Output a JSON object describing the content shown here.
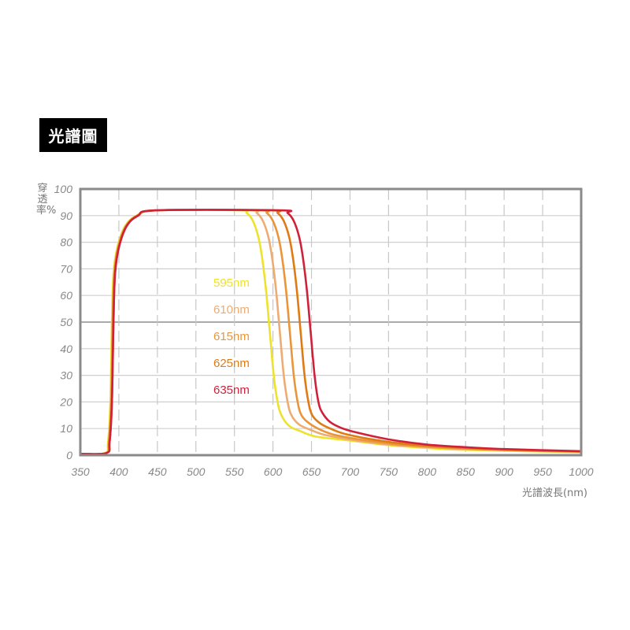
{
  "title": "光譜圖",
  "chart_data": {
    "type": "line",
    "title": "光譜圖",
    "xlabel": "光譜波長(nm)",
    "ylabel": "穿透率%",
    "xlim": [
      350,
      1000
    ],
    "ylim": [
      0,
      100
    ],
    "xticks": [
      350,
      400,
      450,
      500,
      550,
      600,
      650,
      700,
      750,
      800,
      850,
      900,
      950,
      1000
    ],
    "yticks": [
      0,
      10,
      20,
      30,
      40,
      50,
      60,
      70,
      80,
      90,
      100
    ],
    "grid": true,
    "legend_position": "center-left",
    "series": [
      {
        "name": "595nm",
        "color": "#ede22c",
        "points": [
          [
            350,
            0.5
          ],
          [
            382,
            0.8
          ],
          [
            386,
            5
          ],
          [
            389,
            20
          ],
          [
            391,
            50
          ],
          [
            393,
            68
          ],
          [
            398,
            78
          ],
          [
            408,
            86
          ],
          [
            423,
            90
          ],
          [
            448,
            92
          ],
          [
            556,
            92
          ],
          [
            566,
            91
          ],
          [
            574,
            88
          ],
          [
            581,
            82
          ],
          [
            586,
            74
          ],
          [
            591,
            62
          ],
          [
            596,
            46
          ],
          [
            601,
            30
          ],
          [
            606,
            20
          ],
          [
            611,
            15
          ],
          [
            621,
            11
          ],
          [
            636,
            9
          ],
          [
            656,
            7
          ],
          [
            700,
            5.5
          ],
          [
            750,
            3.8
          ],
          [
            800,
            2.7
          ],
          [
            850,
            2
          ],
          [
            1000,
            1.1
          ]
        ]
      },
      {
        "name": "610nm",
        "color": "#eeab72",
        "points": [
          [
            350,
            0.5
          ],
          [
            383,
            0.8
          ],
          [
            387,
            5
          ],
          [
            390,
            20
          ],
          [
            392,
            50
          ],
          [
            394,
            68
          ],
          [
            399,
            78
          ],
          [
            409,
            86
          ],
          [
            424,
            90
          ],
          [
            449,
            92
          ],
          [
            569,
            92
          ],
          [
            579,
            91
          ],
          [
            587,
            88
          ],
          [
            594,
            82
          ],
          [
            599,
            74
          ],
          [
            604,
            62
          ],
          [
            609,
            46
          ],
          [
            614,
            30
          ],
          [
            619,
            20
          ],
          [
            624,
            15
          ],
          [
            634,
            11.5
          ],
          [
            649,
            9.5
          ],
          [
            669,
            7.5
          ],
          [
            709,
            5.5
          ],
          [
            759,
            3.8
          ],
          [
            859,
            2.2
          ],
          [
            1000,
            1.2
          ]
        ]
      },
      {
        "name": "615nm",
        "color": "#e9953a",
        "points": [
          [
            350,
            0.5
          ],
          [
            383,
            0.8
          ],
          [
            387,
            5
          ],
          [
            390,
            20
          ],
          [
            392,
            50
          ],
          [
            394,
            68
          ],
          [
            399,
            78
          ],
          [
            409,
            86
          ],
          [
            424,
            90
          ],
          [
            449,
            92
          ],
          [
            582,
            92
          ],
          [
            592,
            91
          ],
          [
            600,
            88
          ],
          [
            607,
            82
          ],
          [
            612,
            74
          ],
          [
            617,
            62
          ],
          [
            622,
            46
          ],
          [
            627,
            30
          ],
          [
            632,
            20
          ],
          [
            637,
            15
          ],
          [
            647,
            12
          ],
          [
            662,
            9.5
          ],
          [
            682,
            7.5
          ],
          [
            722,
            5.5
          ],
          [
            772,
            3.8
          ],
          [
            872,
            2.2
          ],
          [
            1000,
            1.3
          ]
        ]
      },
      {
        "name": "625nm",
        "color": "#df7b12",
        "points": [
          [
            350,
            0.5
          ],
          [
            384,
            0.8
          ],
          [
            388,
            5
          ],
          [
            391,
            20
          ],
          [
            393,
            50
          ],
          [
            395,
            68
          ],
          [
            400,
            78
          ],
          [
            410,
            86
          ],
          [
            425,
            90
          ],
          [
            450,
            92
          ],
          [
            596,
            92
          ],
          [
            606,
            91
          ],
          [
            614,
            88
          ],
          [
            621,
            82
          ],
          [
            626,
            74
          ],
          [
            631,
            62
          ],
          [
            636,
            46
          ],
          [
            641,
            30
          ],
          [
            646,
            20
          ],
          [
            651,
            15
          ],
          [
            661,
            12
          ],
          [
            676,
            9.8
          ],
          [
            696,
            7.8
          ],
          [
            736,
            5.6
          ],
          [
            786,
            3.9
          ],
          [
            886,
            2.3
          ],
          [
            1000,
            1.4
          ]
        ]
      },
      {
        "name": "635nm",
        "color": "#d0213a",
        "points": [
          [
            350,
            0.5
          ],
          [
            384,
            0.8
          ],
          [
            388,
            5
          ],
          [
            391,
            20
          ],
          [
            393,
            50
          ],
          [
            395,
            68
          ],
          [
            400,
            78
          ],
          [
            410,
            86
          ],
          [
            425,
            90
          ],
          [
            450,
            92
          ],
          [
            609,
            92
          ],
          [
            619,
            91
          ],
          [
            627,
            88
          ],
          [
            634,
            82
          ],
          [
            639,
            74
          ],
          [
            644,
            62
          ],
          [
            649,
            46
          ],
          [
            654,
            30
          ],
          [
            659,
            20
          ],
          [
            664,
            16
          ],
          [
            674,
            12.5
          ],
          [
            689,
            10.2
          ],
          [
            709,
            8.5
          ],
          [
            749,
            6
          ],
          [
            799,
            4
          ],
          [
            849,
            3
          ],
          [
            899,
            2.3
          ],
          [
            1000,
            1.5
          ]
        ]
      }
    ],
    "first_xtick_color": "#a0348e"
  }
}
